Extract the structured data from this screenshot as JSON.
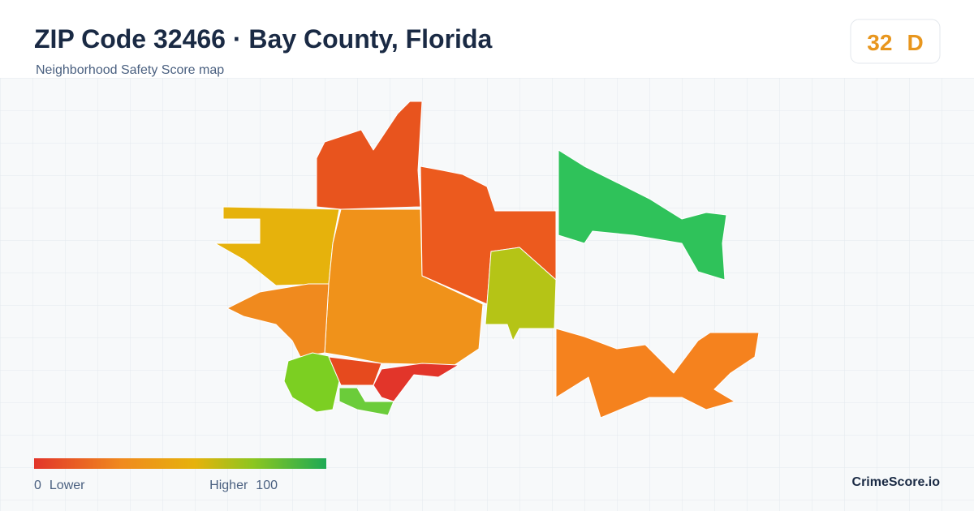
{
  "header": {
    "title": "ZIP Code 32466 · Bay County, Florida",
    "subtitle": "Neighborhood Safety Score map"
  },
  "score": {
    "value": 32,
    "grade": "D"
  },
  "legend": {
    "min": 0,
    "min_label": "Lower",
    "max_label": "Higher",
    "max": 100
  },
  "brand": "CrimeScore.io"
}
